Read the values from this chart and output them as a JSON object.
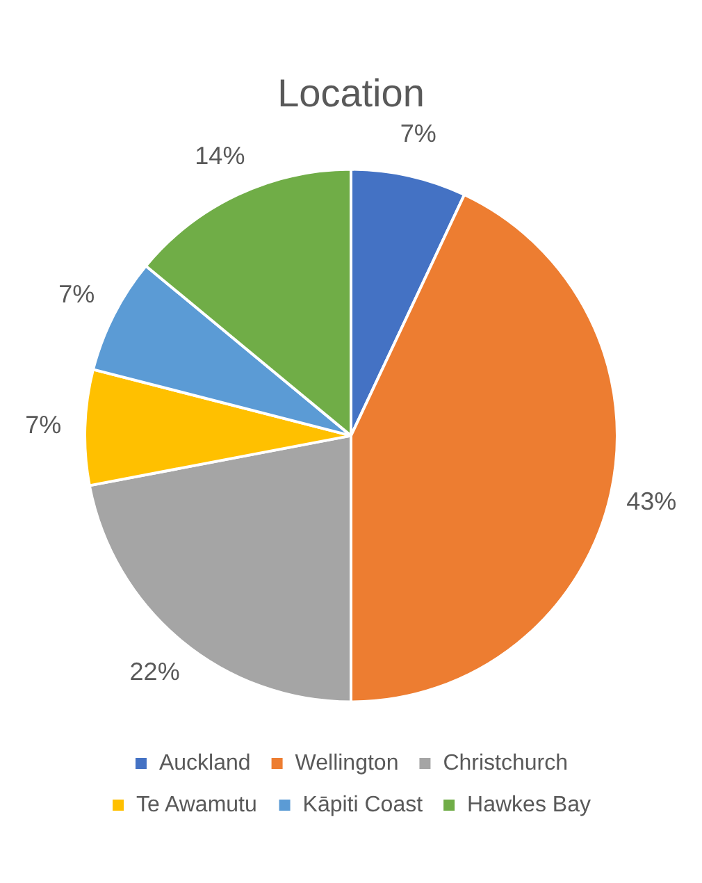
{
  "chart_data": {
    "type": "pie",
    "title": "Location",
    "categories": [
      "Auckland",
      "Wellington",
      "Christchurch",
      "Te Awamutu",
      "Kāpiti Coast",
      "Hawkes Bay"
    ],
    "values": [
      7,
      43,
      22,
      7,
      7,
      14
    ],
    "colors": [
      "#4472c4",
      "#ed7d31",
      "#a5a5a5",
      "#ffc000",
      "#5b9bd5",
      "#70ad47"
    ],
    "value_labels": [
      "7%",
      "43%",
      "22%",
      "7%",
      "7%",
      "14%"
    ],
    "legend": "bottom"
  }
}
